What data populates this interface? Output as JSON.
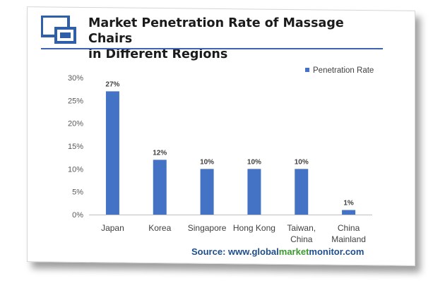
{
  "title_line1": "Market Penetration Rate of Massage Chairs",
  "title_line2": "in Different Regions",
  "source": {
    "prefix": "Source: www.",
    "part1": "global",
    "part2": "market",
    "part3": "monitor",
    "suffix": ".com"
  },
  "colors": {
    "bar": "#4472c4",
    "logo_blue": "#2f5fa8",
    "source_blue": "#1f4e8c",
    "source_green": "#3a9a2e"
  },
  "chart_data": {
    "type": "bar",
    "categories": [
      [
        "Japan"
      ],
      [
        "Korea"
      ],
      [
        "Singapore"
      ],
      [
        "Hong Kong"
      ],
      [
        "Taiwan,",
        "China"
      ],
      [
        "China",
        "Mainland"
      ]
    ],
    "series": [
      {
        "name": "Penetration Rate",
        "values": [
          27,
          12,
          10,
          10,
          10,
          1
        ],
        "labels": [
          "27%",
          "12%",
          "10%",
          "10%",
          "10%",
          "1%"
        ]
      }
    ],
    "yticks": [
      "0%",
      "5%",
      "10%",
      "15%",
      "20%",
      "25%",
      "30%"
    ],
    "ylim": [
      0,
      30
    ],
    "legend_position": "top-right",
    "grid": false
  }
}
